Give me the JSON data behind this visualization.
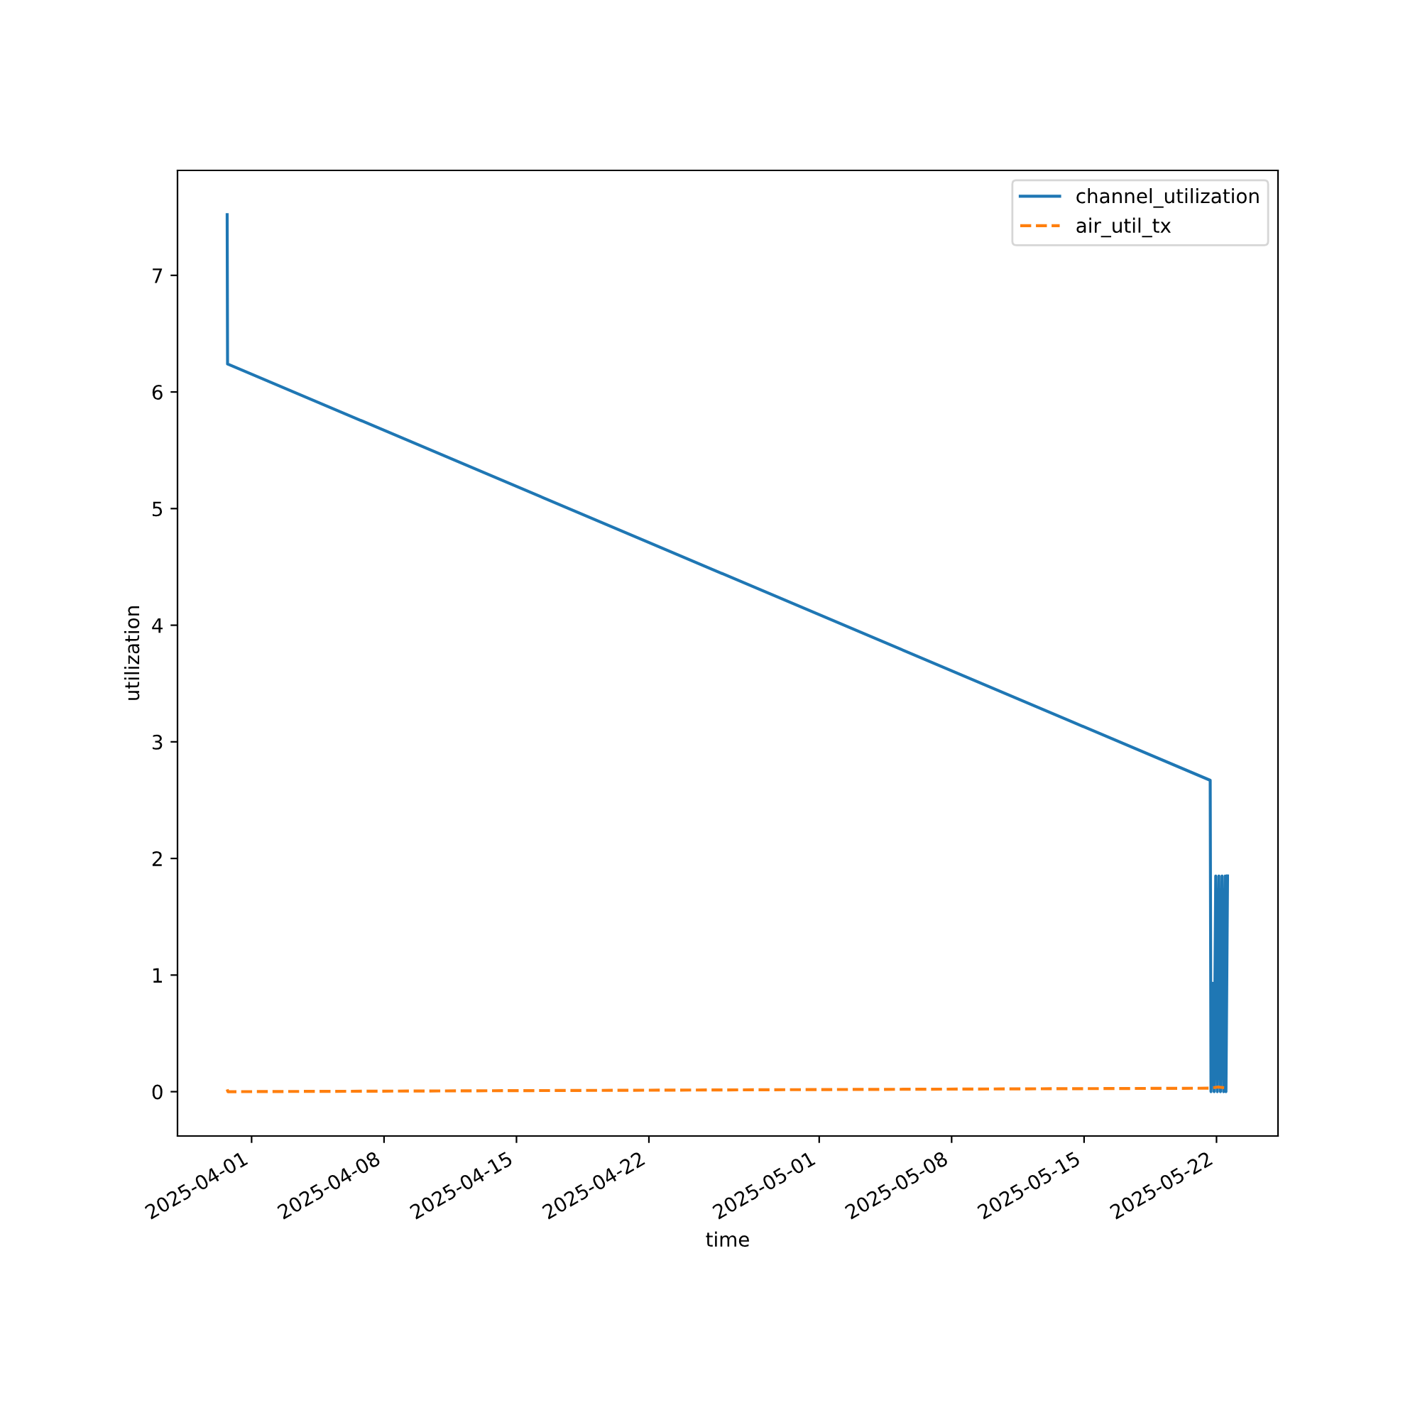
{
  "chart_data": {
    "type": "line",
    "xlabel": "time",
    "ylabel": "utilization",
    "xlim": [
      "2025-03-28T02:00",
      "2025-05-25T06:00"
    ],
    "xticks": [
      "2025-04-01",
      "2025-04-08",
      "2025-04-15",
      "2025-04-22",
      "2025-05-01",
      "2025-05-08",
      "2025-05-15",
      "2025-05-22"
    ],
    "ylim": [
      -0.38,
      7.9
    ],
    "yticks": [
      0,
      1,
      2,
      3,
      4,
      5,
      6,
      7
    ],
    "legend": "top right",
    "grid": false,
    "series": [
      {
        "name": "channel_utilization",
        "color": "#1f77b4",
        "line_style": "solid",
        "x": [
          "2025-03-30T17:00",
          "2025-03-30T17:30",
          "2025-05-21T16:00",
          "2025-05-21T17:00",
          "2025-05-21T19:00",
          "2025-05-21T21:00",
          "2025-05-21T23:00",
          "2025-05-22T01:00",
          "2025-05-22T03:00",
          "2025-05-22T05:00",
          "2025-05-22T07:00",
          "2025-05-22T09:00",
          "2025-05-22T11:00",
          "2025-05-22T12:00",
          "2025-05-22T14:00"
        ],
        "values": [
          7.52,
          6.24,
          2.67,
          0.0,
          0.93,
          0.0,
          1.85,
          0.0,
          1.85,
          0.0,
          1.85,
          0.0,
          1.85,
          0.0,
          1.85
        ]
      },
      {
        "name": "air_util_tx",
        "color": "#ff7f0e",
        "line_style": "dashed",
        "x": [
          "2025-03-30T17:00",
          "2025-03-30T18:00",
          "2025-05-21T16:00",
          "2025-05-22T02:00",
          "2025-05-22T14:00"
        ],
        "values": [
          0.02,
          0.0,
          0.03,
          0.04,
          0.03
        ]
      }
    ]
  }
}
